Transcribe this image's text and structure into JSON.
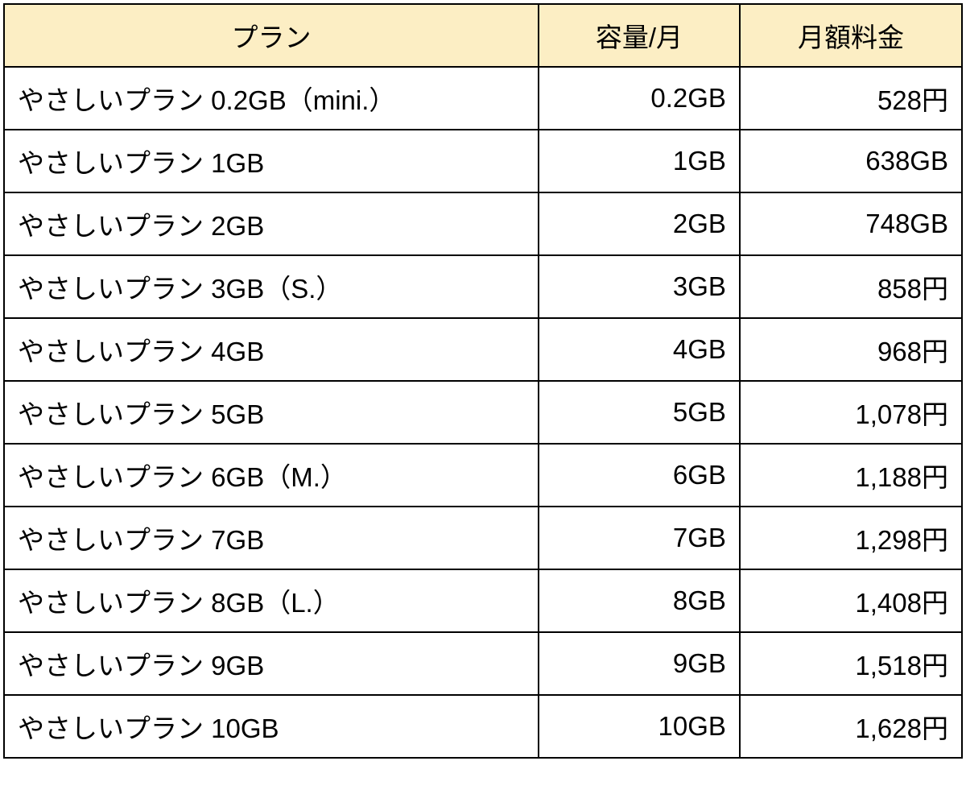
{
  "table": {
    "header_background": "#fceec4",
    "border_color": "#000000",
    "cell_fontsize": 33,
    "columns": [
      {
        "label": "プラン",
        "width_pct": 55.8,
        "align": "center"
      },
      {
        "label": "容量/月",
        "width_pct": 21,
        "align": "center"
      },
      {
        "label": "月額料金",
        "width_pct": 23.2,
        "align": "center"
      }
    ],
    "rows": [
      {
        "plan": "やさしいプラン 0.2GB（mini.）",
        "capacity": "0.2GB",
        "price": "528円"
      },
      {
        "plan": "やさしいプラン 1GB",
        "capacity": "1GB",
        "price": "638GB"
      },
      {
        "plan": "やさしいプラン 2GB",
        "capacity": "2GB",
        "price": "748GB"
      },
      {
        "plan": "やさしいプラン 3GB（S.）",
        "capacity": "3GB",
        "price": "858円"
      },
      {
        "plan": "やさしいプラン 4GB",
        "capacity": "4GB",
        "price": "968円"
      },
      {
        "plan": "やさしいプラン 5GB",
        "capacity": "5GB",
        "price": "1,078円"
      },
      {
        "plan": "やさしいプラン 6GB（M.）",
        "capacity": "6GB",
        "price": "1,188円"
      },
      {
        "plan": "やさしいプラン 7GB",
        "capacity": "7GB",
        "price": "1,298円"
      },
      {
        "plan": "やさしいプラン 8GB（L.）",
        "capacity": "8GB",
        "price": "1,408円"
      },
      {
        "plan": "やさしいプラン 9GB",
        "capacity": "9GB",
        "price": "1,518円"
      },
      {
        "plan": "やさしいプラン 10GB",
        "capacity": "10GB",
        "price": "1,628円"
      }
    ]
  }
}
